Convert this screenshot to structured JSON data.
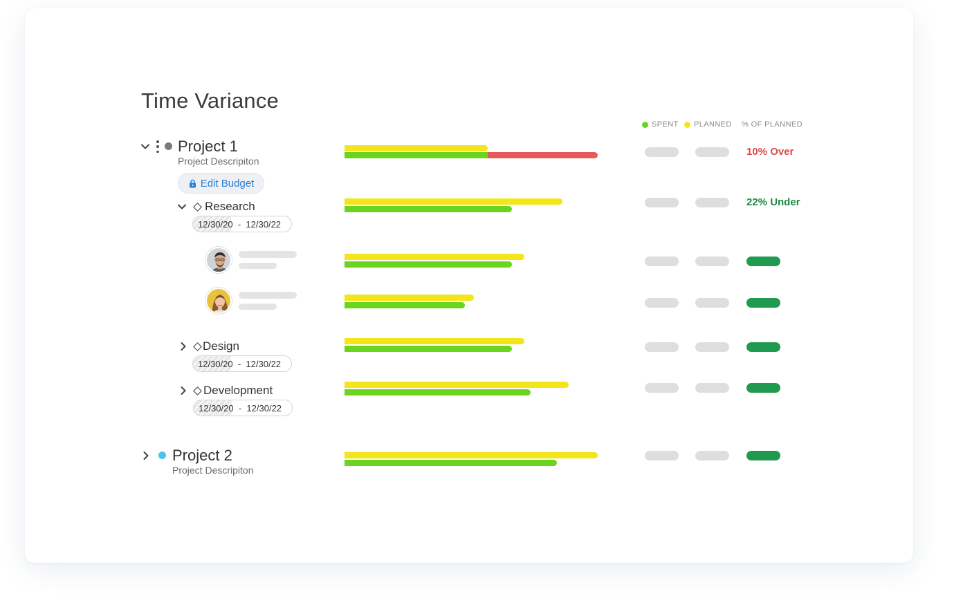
{
  "title": "Time Variance",
  "legend": {
    "spent": "SPENT",
    "planned": "PLANNED",
    "pct": "% OF PLANNED"
  },
  "colors": {
    "spent": "#6bd41e",
    "planned": "#f2e51a",
    "over": "#e85a5a",
    "under_text": "#1e8a45",
    "over_text": "#e04848",
    "pill_green": "#1f9a4f"
  },
  "project1": {
    "name": "Project 1",
    "description": "Project Descripiton",
    "dot_color": "#7a7a7a",
    "edit_budget": "Edit Budget",
    "variance": "10% Over",
    "planned_pct": 0.565,
    "spent_pct": 0.565,
    "over_pct": 0.435
  },
  "tasks": {
    "research": {
      "name": "Research",
      "start": "12/30/20",
      "end": "12/30/22",
      "variance": "22% Under",
      "planned_pct": 0.86,
      "spent_pct": 0.66
    },
    "design": {
      "name": "Design",
      "start": "12/30/20",
      "end": "12/30/22",
      "planned_pct": 0.71,
      "spent_pct": 0.66
    },
    "development": {
      "name": "Development",
      "start": "12/30/20",
      "end": "12/30/22",
      "planned_pct": 0.885,
      "spent_pct": 0.735
    }
  },
  "members": [
    {
      "avatar": "male-avatar",
      "planned_pct": 0.71,
      "spent_pct": 0.66
    },
    {
      "avatar": "female-avatar",
      "planned_pct": 0.51,
      "spent_pct": 0.475
    }
  ],
  "project2": {
    "name": "Project 2",
    "description": "Project Descripiton",
    "dot_color": "#4cc3e8",
    "planned_pct": 1.0,
    "spent_pct": 0.84
  },
  "date_separator": "-"
}
